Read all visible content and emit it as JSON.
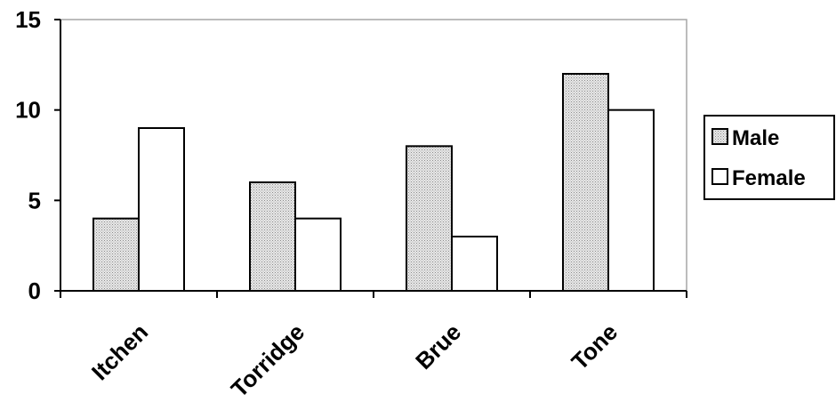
{
  "chart_data": {
    "type": "bar",
    "title": "",
    "xlabel": "",
    "ylabel": "",
    "categories": [
      "Itchen",
      "Torridge",
      "Brue",
      "Tone"
    ],
    "series": [
      {
        "name": "Male",
        "values": [
          4,
          6,
          8,
          12
        ],
        "fill": "dotted-grey"
      },
      {
        "name": "Female",
        "values": [
          9,
          4,
          3,
          10
        ],
        "fill": "white"
      }
    ],
    "ylim": [
      0,
      15
    ],
    "yticks": [
      0,
      5,
      10,
      15
    ],
    "grid": false,
    "legend_position": "right"
  },
  "colors": {
    "male_fill": "#d9d9d9",
    "female_fill": "#ffffff",
    "frame": "#a6a6a6",
    "ink": "#000000"
  }
}
